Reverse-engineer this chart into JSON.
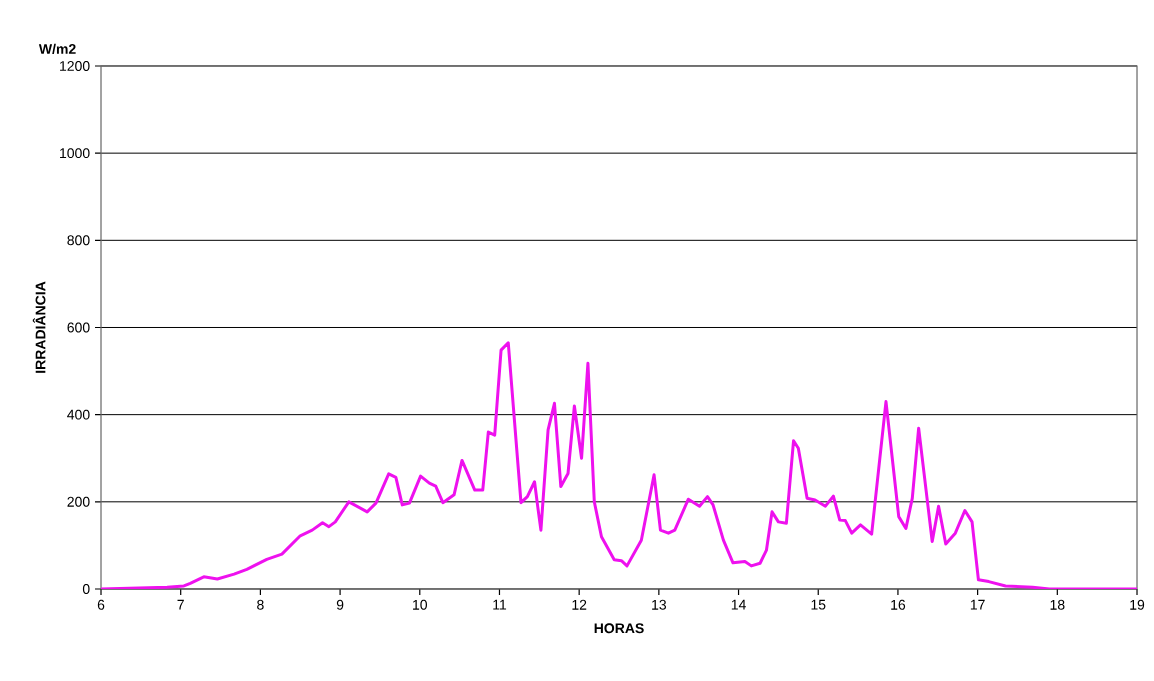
{
  "chart_data": {
    "type": "line",
    "xlabel": "HORAS",
    "ylabel": "IRRADIÂNCIA",
    "annotations": [
      "W/m2"
    ],
    "xlim": [
      6,
      19
    ],
    "ylim": [
      0,
      1200
    ],
    "xticks": [
      6,
      7,
      8,
      9,
      10,
      11,
      12,
      13,
      14,
      15,
      16,
      17,
      18,
      19
    ],
    "yticks": [
      0,
      200,
      400,
      600,
      800,
      1000,
      1200
    ],
    "grid": "y",
    "marker": "none",
    "line_style": "solid",
    "series": [
      {
        "color": "#ee11ee",
        "x": [
          6.0,
          6.83,
          7.04,
          7.12,
          7.29,
          7.46,
          7.67,
          7.83,
          8.08,
          8.27,
          8.5,
          8.65,
          8.78,
          8.86,
          8.94,
          9.11,
          9.34,
          9.45,
          9.61,
          9.7,
          9.78,
          9.87,
          10.01,
          10.12,
          10.2,
          10.29,
          10.43,
          10.53,
          10.69,
          10.79,
          10.86,
          10.94,
          11.02,
          11.11,
          11.27,
          11.35,
          11.44,
          11.48,
          11.52,
          11.61,
          11.69,
          11.77,
          11.86,
          11.94,
          12.03,
          12.11,
          12.19,
          12.28,
          12.44,
          12.53,
          12.6,
          12.78,
          12.94,
          13.02,
          13.12,
          13.2,
          13.37,
          13.51,
          13.61,
          13.68,
          13.81,
          13.93,
          14.08,
          14.16,
          14.27,
          14.35,
          14.42,
          14.5,
          14.6,
          14.69,
          14.75,
          14.86,
          14.96,
          15.09,
          15.19,
          15.27,
          15.34,
          15.42,
          15.53,
          15.67,
          15.85,
          16.01,
          16.1,
          16.18,
          16.26,
          16.43,
          16.51,
          16.6,
          16.72,
          16.84,
          16.93,
          17.01,
          17.14,
          17.35,
          17.69,
          17.9,
          19.0
        ],
        "values": [
          0,
          4,
          7,
          13,
          28,
          23,
          34,
          45,
          68,
          80,
          122,
          135,
          152,
          143,
          154,
          200,
          177,
          197,
          264,
          256,
          193,
          197,
          259,
          243,
          236,
          198,
          216,
          295,
          227,
          227,
          360,
          353,
          548,
          565,
          198,
          212,
          246,
          189,
          135,
          365,
          426,
          235,
          265,
          420,
          300,
          518,
          200,
          120,
          67,
          65,
          53,
          112,
          262,
          135,
          128,
          135,
          206,
          190,
          212,
          193,
          112,
          60,
          63,
          53,
          59,
          89,
          177,
          154,
          151,
          340,
          323,
          208,
          204,
          190,
          213,
          158,
          157,
          128,
          147,
          126,
          430,
          166,
          139,
          208,
          369,
          109,
          190,
          103,
          128,
          180,
          154,
          21,
          17,
          7,
          4,
          0,
          0
        ]
      }
    ]
  }
}
